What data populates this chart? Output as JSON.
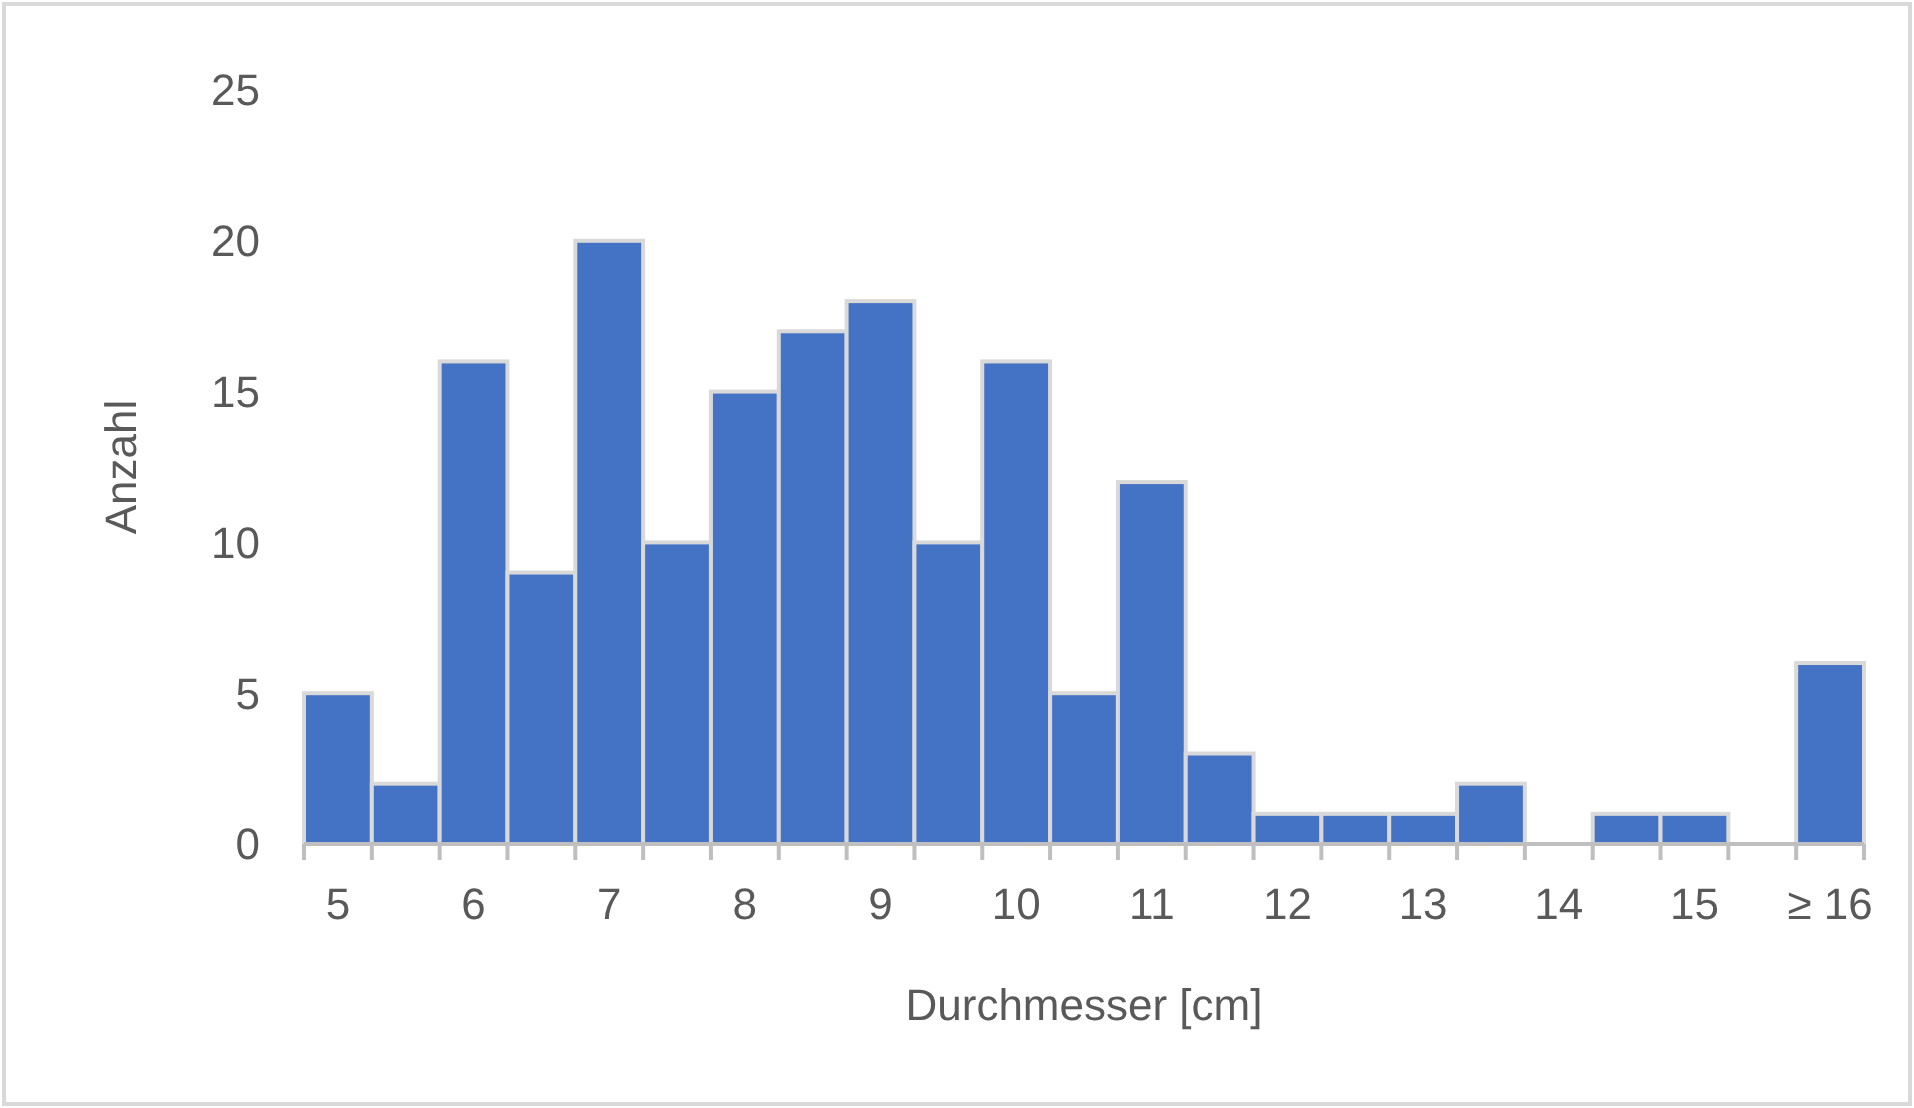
{
  "chart_data": {
    "type": "bar",
    "xlabel": "Durchmesser [cm]",
    "ylabel": "Anzahl",
    "categories": [
      "5",
      null,
      "6",
      null,
      "7",
      null,
      "8",
      null,
      "9",
      null,
      "10",
      null,
      "11",
      null,
      "12",
      null,
      "13",
      null,
      "14",
      null,
      "15",
      null,
      "≥ 16"
    ],
    "values": [
      5,
      2,
      16,
      9,
      20,
      10,
      15,
      17,
      18,
      10,
      16,
      5,
      12,
      3,
      1,
      1,
      1,
      2,
      0,
      1,
      1,
      0,
      6
    ],
    "color": "#4472c4",
    "ylim": [
      0,
      25
    ],
    "yticks": [
      0,
      5,
      10,
      15,
      20,
      25
    ]
  }
}
